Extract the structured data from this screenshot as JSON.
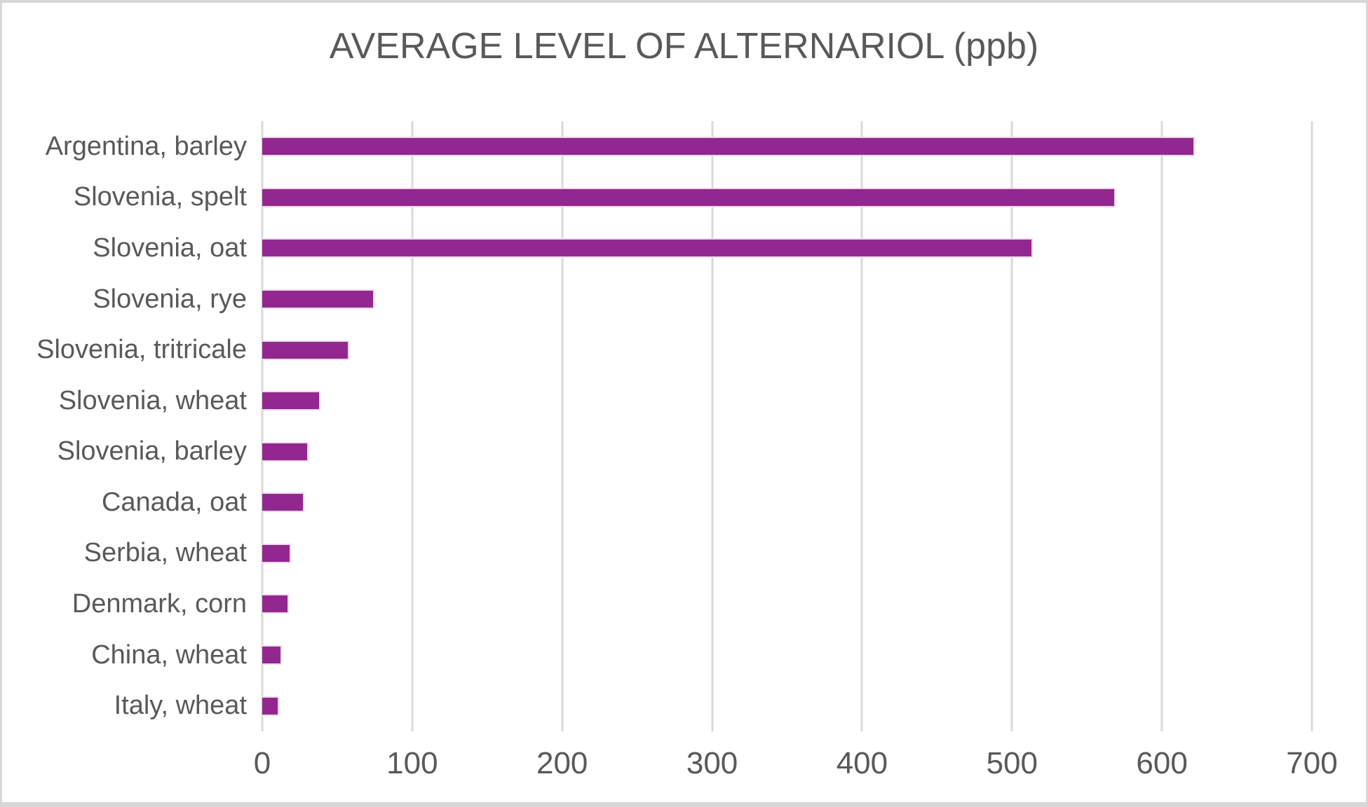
{
  "frame": {
    "background": "#ffffff",
    "border_color": "#d8d8d8"
  },
  "chart_data": {
    "type": "bar",
    "orientation": "horizontal",
    "title": "AVERAGE LEVEL OF ALTERNARIOL (ppb)",
    "categories": [
      "Argentina, barley",
      "Slovenia, spelt",
      "Slovenia, oat",
      "Slovenia, rye",
      "Slovenia, tritricale",
      "Slovenia, wheat",
      "Slovenia, barley",
      "Canada, oat",
      "Serbia, wheat",
      "Denmark, corn",
      "China, wheat",
      "Italy, wheat"
    ],
    "values": [
      622,
      569,
      514,
      75,
      58,
      39,
      31,
      28,
      19,
      18,
      13,
      11
    ],
    "xlabel": "",
    "ylabel": "",
    "xlim": [
      0,
      700
    ],
    "x_ticks": [
      0,
      100,
      200,
      300,
      400,
      500,
      600,
      700
    ],
    "grid": "vertical-only",
    "legend_position": "none",
    "bar_color": "#92278F",
    "bar_border_color": "#ecd9e9",
    "gridline_color": "#d9d9d9",
    "text_color": "#595959"
  }
}
